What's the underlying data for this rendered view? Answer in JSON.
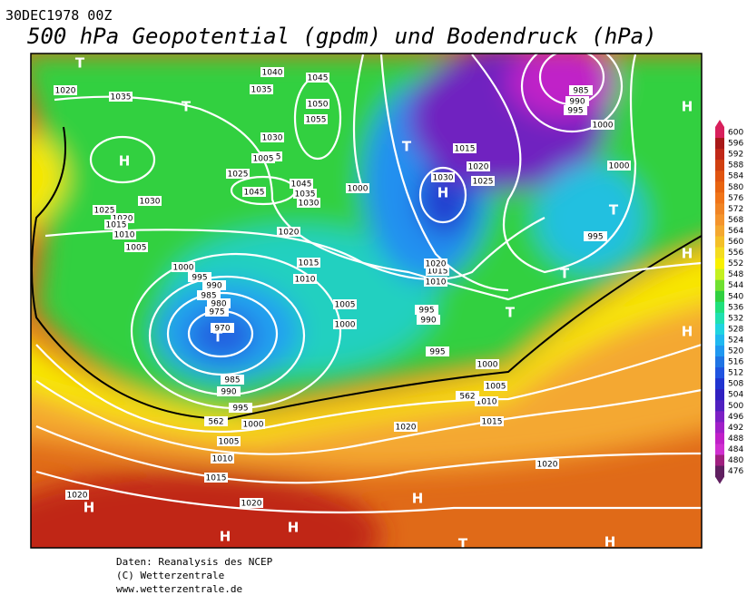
{
  "header": {
    "date": "30DEC1978 00Z",
    "title": "500 hPa Geopotential (gpdm) und Bodendruck (hPa)"
  },
  "colorbar": {
    "labels": [
      600,
      596,
      592,
      588,
      584,
      580,
      576,
      572,
      568,
      564,
      560,
      556,
      552,
      548,
      544,
      540,
      536,
      532,
      528,
      524,
      520,
      516,
      512,
      508,
      504,
      500,
      496,
      492,
      488,
      484,
      480,
      476
    ],
    "colors": [
      "#d8205c",
      "#a81818",
      "#c02818",
      "#d04010",
      "#e05410",
      "#e86410",
      "#f07418",
      "#f08424",
      "#f4942c",
      "#f4a830",
      "#f4c028",
      "#f4dc20",
      "#f8f000",
      "#c4f020",
      "#70e030",
      "#30d040",
      "#20e07c",
      "#20e0b0",
      "#20d4e0",
      "#20b8f0",
      "#2098f0",
      "#2074e4",
      "#2054e0",
      "#2034d0",
      "#3020c0",
      "#5020c0",
      "#7c20c4",
      "#a020c8",
      "#c020c8",
      "#d030d0",
      "#a02080",
      "#602060"
    ]
  },
  "systems": [
    "T",
    "T",
    "H",
    "T",
    "H",
    "T",
    "T",
    "T",
    "T",
    "H",
    "H",
    "H",
    "H",
    "H",
    "H",
    "T",
    "H",
    "H"
  ],
  "isobar_labels": [
    1020,
    1035,
    1040,
    1035,
    1045,
    1050,
    1055,
    1030,
    1025,
    1025,
    1045,
    1045,
    1035,
    1030,
    1030,
    1025,
    1020,
    1015,
    1010,
    1005,
    1020,
    1000,
    995,
    990,
    985,
    980,
    975,
    970,
    1015,
    1010,
    1005,
    1000,
    985,
    990,
    995,
    1000,
    1005,
    1010,
    1015,
    1020,
    1020,
    1015,
    1020,
    1025,
    1030,
    1020,
    1015,
    1010,
    995,
    990,
    995,
    1000,
    1005,
    1010,
    1015,
    1020,
    1020,
    985,
    990,
    995,
    1000,
    1000,
    995,
    562,
    562,
    1000,
    1005
  ],
  "footer": [
    "Daten: Reanalysis des NCEP",
    "(C) Wetterzentrale",
    "www.wetterzentrale.de"
  ]
}
